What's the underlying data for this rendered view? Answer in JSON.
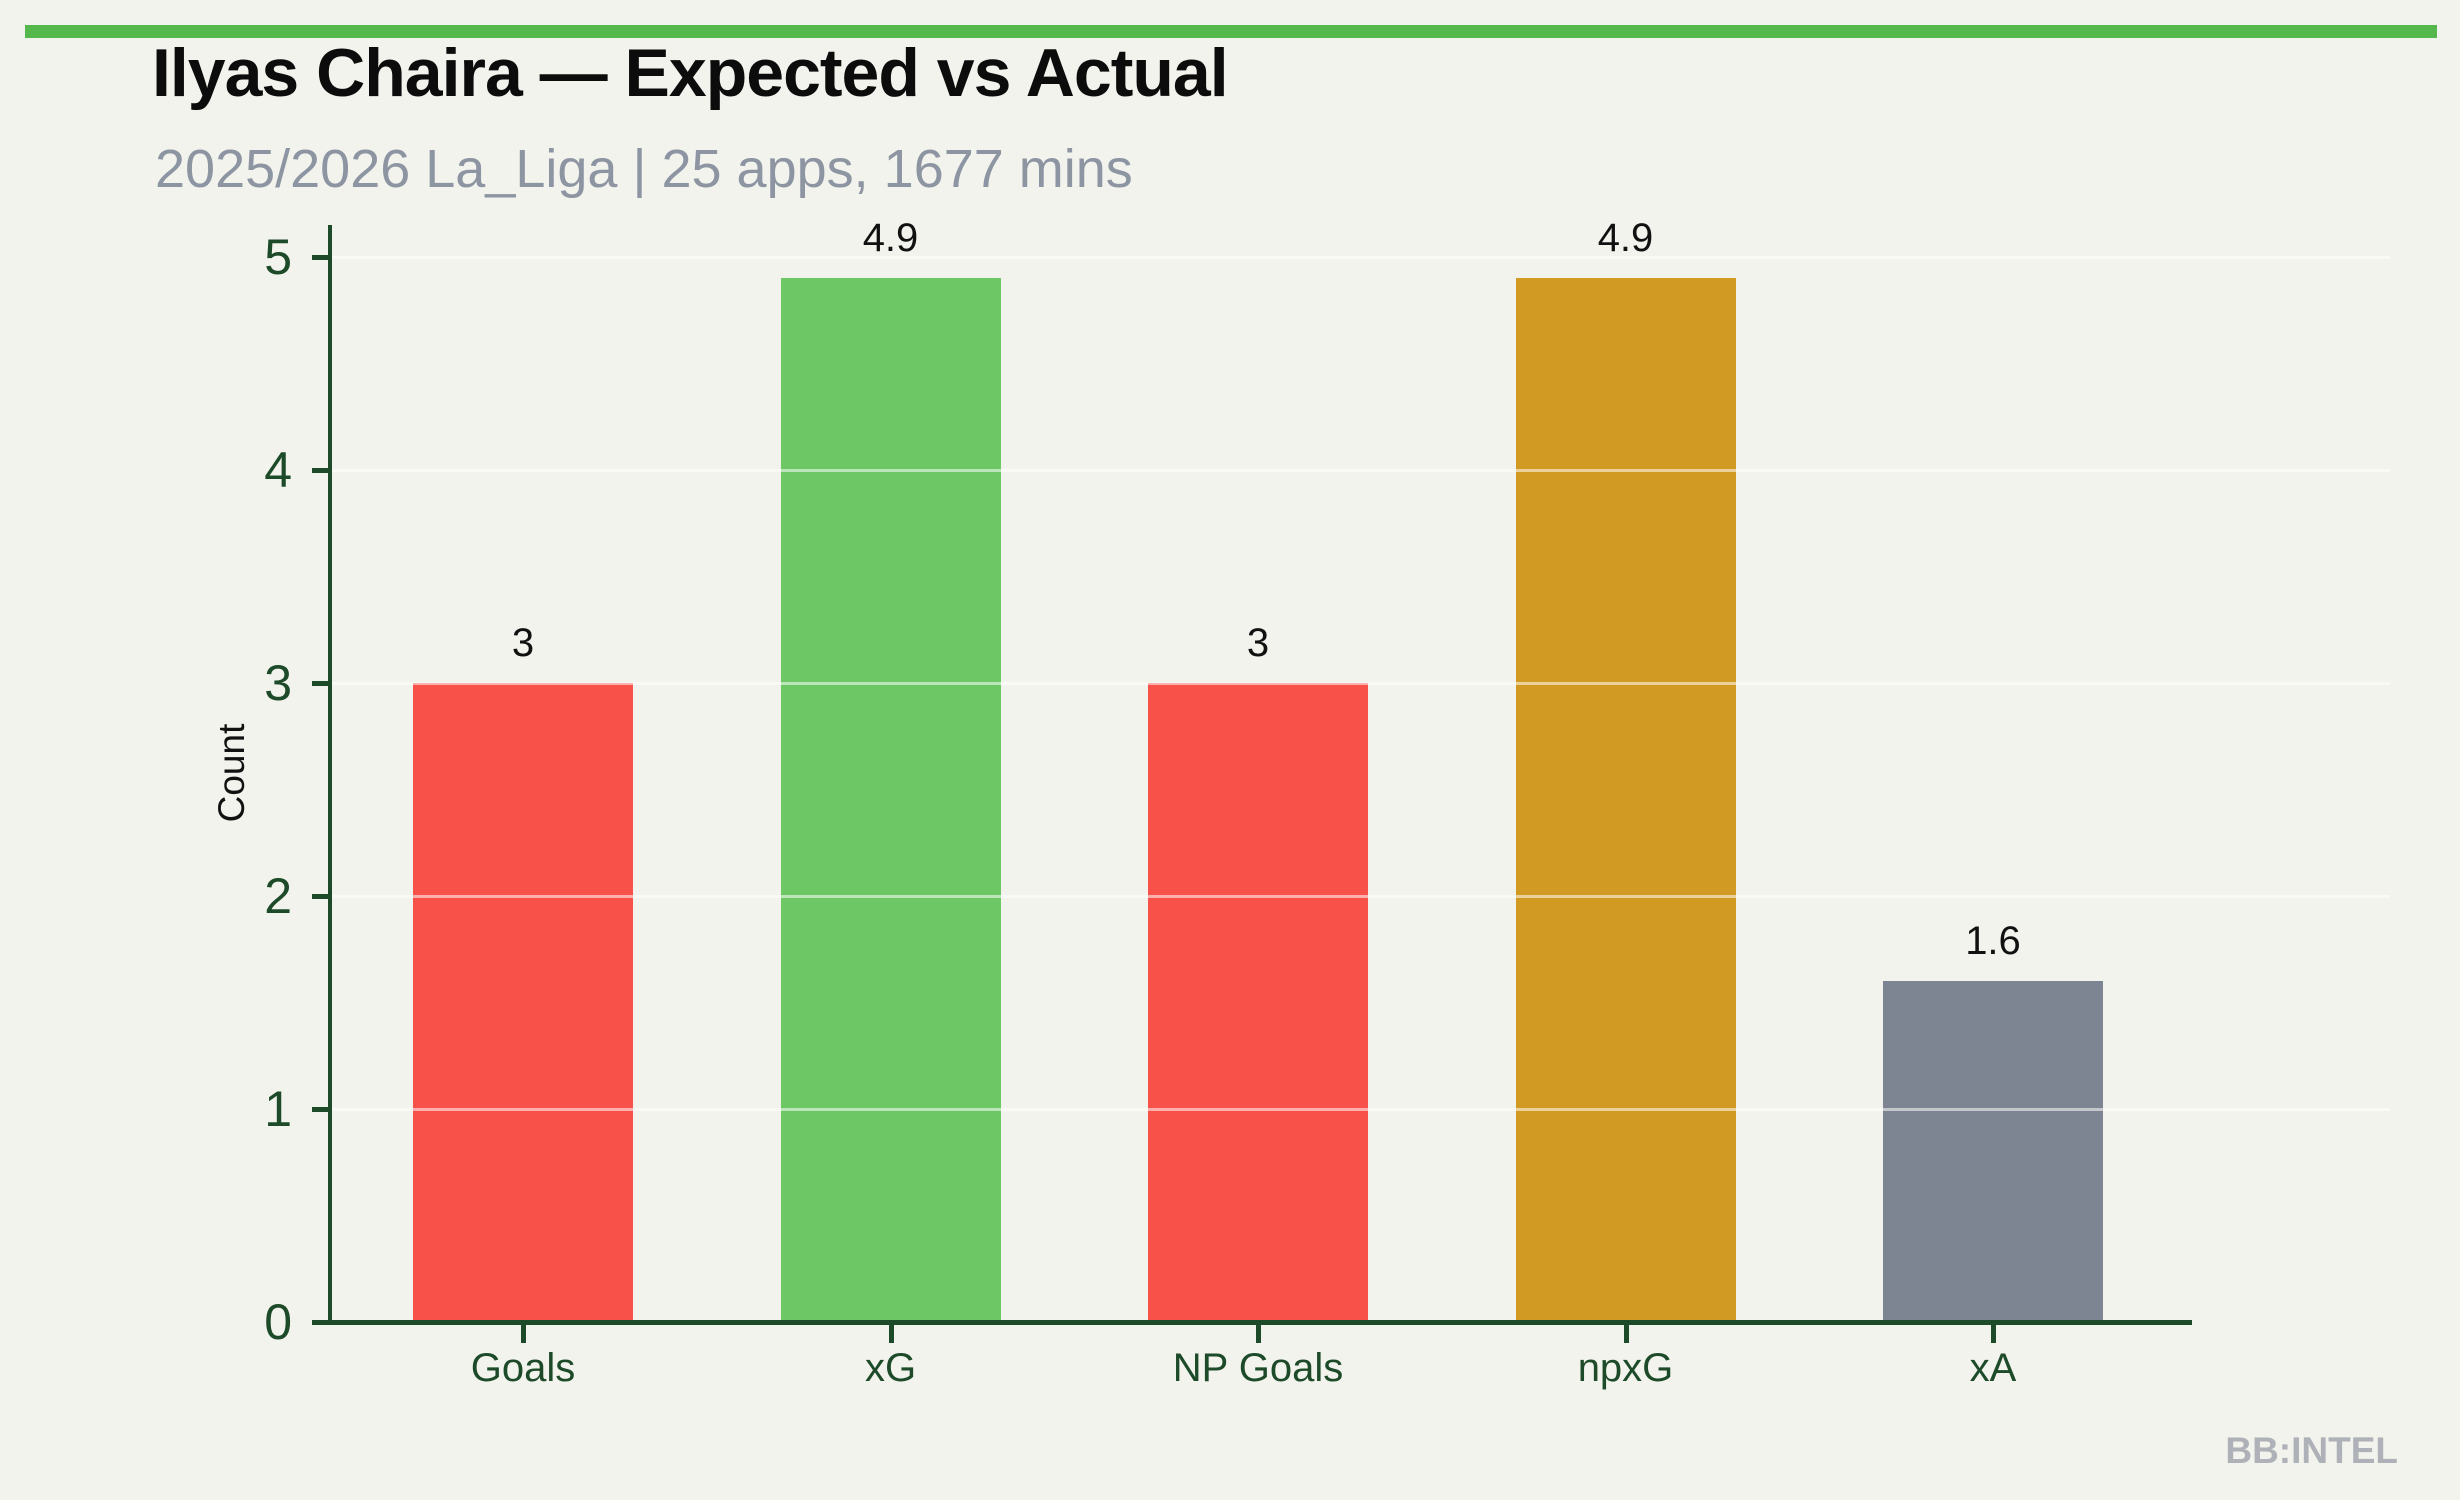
{
  "header": {
    "title": "Ilyas Chaira — Expected vs Actual",
    "subtitle": "2025/2026 La_Liga | 25 apps, 1677 mins"
  },
  "watermark": "BB:INTEL",
  "colors": {
    "background": "#f2f3ec",
    "top_strip": "#55b84c",
    "axis_and_tick_text": "#1d4a28",
    "gridline": "rgba(255,255,255,0.55)",
    "value_label": "#111111",
    "title": "#0c0c0c",
    "subtitle": "#8d95a3",
    "watermark": "#aeb1b8"
  },
  "chart_data": {
    "type": "bar",
    "title": "Ilyas Chaira — Expected vs Actual",
    "subtitle": "2025/2026 La_Liga | 25 apps, 1677 mins",
    "categories": [
      "Goals",
      "xG",
      "NP Goals",
      "npxG",
      "xA"
    ],
    "values": [
      3,
      4.9,
      3,
      4.9,
      1.6
    ],
    "value_labels": [
      "3",
      "4.9",
      "3",
      "4.9",
      "1.6"
    ],
    "bar_colors": [
      "#f8514a",
      "#6cc764",
      "#f8514a",
      "#d09a23",
      "#7c8591"
    ],
    "xlabel": "",
    "ylabel": "Count",
    "ylim": [
      0,
      5.15
    ],
    "yticks": [
      0,
      1,
      2,
      3,
      4,
      5
    ],
    "grid": "horizontal faint white lines at integer ticks",
    "legend": "none"
  }
}
